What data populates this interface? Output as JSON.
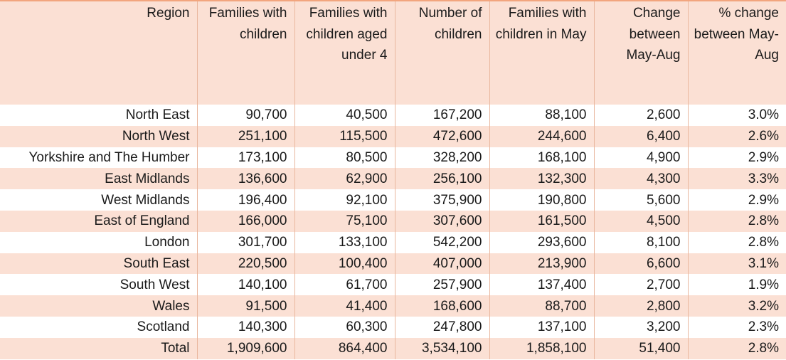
{
  "table": {
    "headers": [
      "Region",
      "Families with children",
      "Families with children aged under 4",
      "Number of children",
      "Families with children in May",
      "Change between May-Aug",
      "% change between May-Aug"
    ],
    "rows": [
      [
        "North East",
        "90,700",
        "40,500",
        "167,200",
        "88,100",
        "2,600",
        "3.0%"
      ],
      [
        "North West",
        "251,100",
        "115,500",
        "472,600",
        "244,600",
        "6,400",
        "2.6%"
      ],
      [
        "Yorkshire and The Humber",
        "173,100",
        "80,500",
        "328,200",
        "168,100",
        "4,900",
        "2.9%"
      ],
      [
        "East Midlands",
        "136,600",
        "62,900",
        "256,100",
        "132,300",
        "4,300",
        "3.3%"
      ],
      [
        "West Midlands",
        "196,400",
        "92,100",
        "375,900",
        "190,800",
        "5,600",
        "2.9%"
      ],
      [
        "East of England",
        "166,000",
        "75,100",
        "307,600",
        "161,500",
        "4,500",
        "2.8%"
      ],
      [
        "London",
        "301,700",
        "133,100",
        "542,200",
        "293,600",
        "8,100",
        "2.8%"
      ],
      [
        "South East",
        "220,500",
        "100,400",
        "407,000",
        "213,900",
        "6,600",
        "3.1%"
      ],
      [
        "South West",
        "140,100",
        "61,700",
        "257,900",
        "137,400",
        "2,700",
        "1.9%"
      ],
      [
        "Wales",
        "91,500",
        "41,400",
        "168,600",
        "88,700",
        "2,800",
        "3.2%"
      ],
      [
        "Scotland",
        "140,300",
        "60,300",
        "247,800",
        "137,100",
        "3,200",
        "2.3%"
      ],
      [
        "Total",
        "1,909,600",
        "864,400",
        "3,534,100",
        "1,858,100",
        "51,400",
        "2.8%"
      ]
    ]
  },
  "colors": {
    "band": "#fbe0d4",
    "border": "#e9b79e",
    "top_rule": "#f2a57e"
  }
}
